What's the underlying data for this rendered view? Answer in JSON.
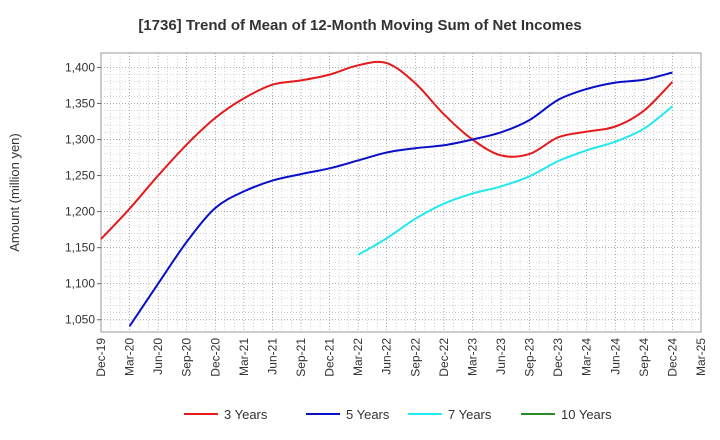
{
  "chart_data": {
    "type": "line",
    "title": "[1736]  Trend of Mean of 12-Month Moving Sum of Net Incomes",
    "ylabel": "Amount (million yen)",
    "xlabel": "",
    "x_ticks": [
      "Dec-19",
      "Mar-20",
      "Jun-20",
      "Sep-20",
      "Dec-20",
      "Mar-21",
      "Jun-21",
      "Sep-21",
      "Dec-21",
      "Mar-22",
      "Jun-22",
      "Sep-22",
      "Dec-22",
      "Mar-23",
      "Jun-23",
      "Sep-23",
      "Dec-23",
      "Mar-24",
      "Jun-24",
      "Sep-24",
      "Dec-24",
      "Mar-25"
    ],
    "y_ticks": [
      1050,
      1100,
      1150,
      1200,
      1250,
      1300,
      1350,
      1400
    ],
    "y_tick_labels": [
      "1,050",
      "1,100",
      "1,150",
      "1,200",
      "1,250",
      "1,300",
      "1,350",
      "1,400"
    ],
    "ylim": [
      1033,
      1420
    ],
    "grid": true,
    "legend_position": "bottom",
    "series": [
      {
        "name": "3 Years",
        "color": "#e41a1c",
        "x": [
          "Dec-19",
          "Mar-20",
          "Jun-20",
          "Sep-20",
          "Dec-20",
          "Mar-21",
          "Jun-21",
          "Sep-21",
          "Dec-21",
          "Mar-22",
          "Jun-22",
          "Sep-22",
          "Dec-22",
          "Mar-23",
          "Jun-23",
          "Sep-23",
          "Dec-23",
          "Mar-24",
          "Jun-24",
          "Sep-24",
          "Dec-24"
        ],
        "values": [
          1162,
          1204,
          1250,
          1293,
          1330,
          1357,
          1376,
          1382,
          1390,
          1403,
          1406,
          1378,
          1335,
          1300,
          1278,
          1280,
          1303,
          1311,
          1318,
          1340,
          1380
        ]
      },
      {
        "name": "5 Years",
        "color": "#0a10c8",
        "x": [
          "Mar-20",
          "Jun-20",
          "Sep-20",
          "Dec-20",
          "Mar-21",
          "Jun-21",
          "Sep-21",
          "Dec-21",
          "Mar-22",
          "Jun-22",
          "Sep-22",
          "Dec-22",
          "Mar-23",
          "Jun-23",
          "Sep-23",
          "Dec-23",
          "Mar-24",
          "Jun-24",
          "Sep-24",
          "Dec-24"
        ],
        "values": [
          1041,
          1100,
          1158,
          1205,
          1228,
          1243,
          1252,
          1260,
          1271,
          1282,
          1288,
          1292,
          1300,
          1310,
          1327,
          1355,
          1370,
          1379,
          1383,
          1393
        ]
      },
      {
        "name": "7 Years",
        "color": "#22e8f0",
        "x": [
          "Mar-22",
          "Jun-22",
          "Sep-22",
          "Dec-22",
          "Mar-23",
          "Jun-23",
          "Sep-23",
          "Dec-23",
          "Mar-24",
          "Jun-24",
          "Sep-24",
          "Dec-24"
        ],
        "values": [
          1140,
          1163,
          1190,
          1211,
          1225,
          1235,
          1249,
          1270,
          1285,
          1297,
          1315,
          1346
        ]
      },
      {
        "name": "10 Years",
        "color": "#2a8a2a",
        "x": [],
        "values": []
      }
    ]
  }
}
